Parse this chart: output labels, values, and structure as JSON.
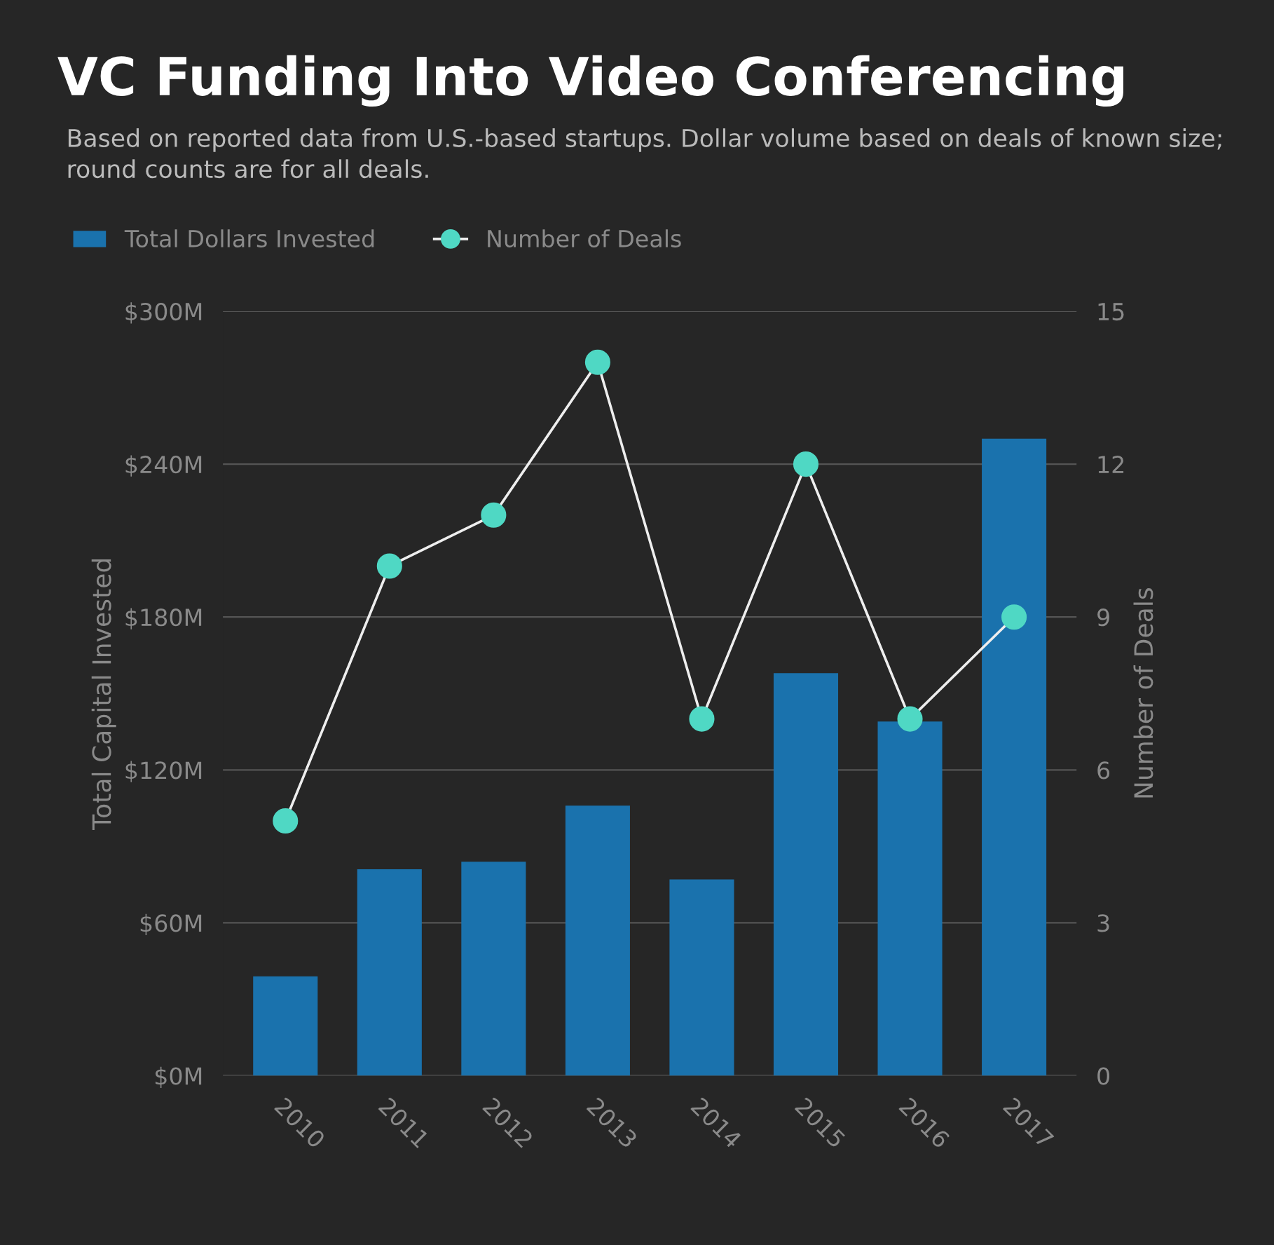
{
  "chart_data": {
    "type": "bar",
    "title": "VC Funding Into Video Conferencing",
    "subtitle": "Based on reported data from U.S.-based startups. Dollar volume based on deals of known size; round counts are for all deals.",
    "categories": [
      "2010",
      "2011",
      "2012",
      "2013",
      "2014",
      "2015",
      "2016",
      "2017"
    ],
    "series": [
      {
        "name": "Total Dollars Invested",
        "color": "#1a72ad",
        "values": [
          39,
          81,
          84,
          106,
          77,
          158,
          139,
          250
        ]
      },
      {
        "name": "Number of Deals",
        "type": "line",
        "axis": "y2",
        "color": "#4fd8c4",
        "values": [
          5,
          10,
          11,
          14,
          7,
          12,
          7,
          9
        ]
      }
    ],
    "ylabel": "Total Capital Invested",
    "y2label": "Number of Deals",
    "ylim": [
      0,
      300
    ],
    "yticks": [
      {
        "value": 0,
        "label": "$0M"
      },
      {
        "value": 60,
        "label": "$60M"
      },
      {
        "value": 120,
        "label": "$120M"
      },
      {
        "value": 180,
        "label": "$180M"
      },
      {
        "value": 240,
        "label": "$240M"
      },
      {
        "value": 300,
        "label": "$300M"
      }
    ],
    "y2lim": [
      0,
      15
    ],
    "y2ticks": [
      0,
      3,
      6,
      9,
      12,
      15
    ],
    "grid": "y",
    "legend": "top left",
    "marker": "circle",
    "line_style": "solid"
  }
}
